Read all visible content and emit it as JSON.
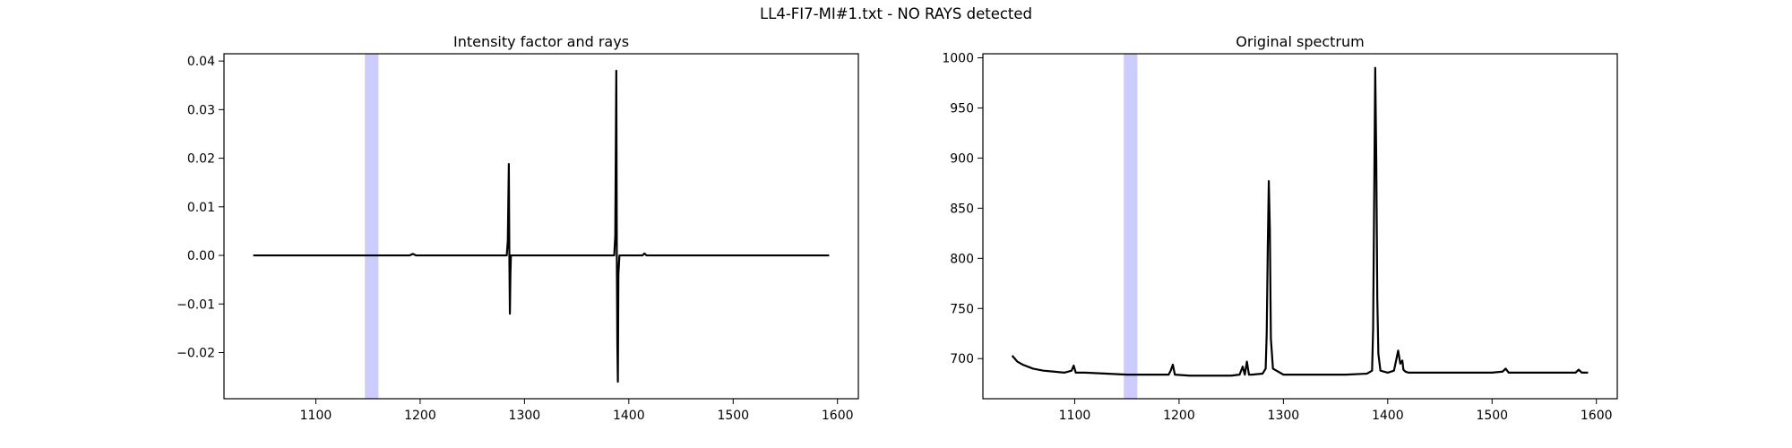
{
  "figure": {
    "title": "LL4-FI7-MI#1.txt - NO RAYS detected"
  },
  "colors": {
    "line": "#000000",
    "band": "#0000ff",
    "band_opacity": 0.2
  },
  "chart_data": [
    {
      "type": "line",
      "title": "Intensity factor and rays",
      "xlabel": "",
      "ylabel": "",
      "xlim": [
        1012,
        1620
      ],
      "ylim": [
        -0.0295,
        0.0415
      ],
      "xticks": [
        1100,
        1200,
        1300,
        1400,
        1500,
        1600
      ],
      "yticks": [
        -0.02,
        -0.01,
        0.0,
        0.01,
        0.02,
        0.03,
        0.04
      ],
      "ytick_labels": [
        "−0.02",
        "−0.01",
        "0.00",
        "0.01",
        "0.02",
        "0.03",
        "0.04"
      ],
      "grid": false,
      "highlight_band": [
        1147,
        1160
      ],
      "series": [
        {
          "x": [
            1040,
            1100,
            1150,
            1190,
            1193,
            1196,
            1240,
            1283,
            1284,
            1285,
            1285.5,
            1286,
            1286.5,
            1287,
            1288,
            1300,
            1340,
            1386,
            1387,
            1388,
            1388.5,
            1389,
            1389.5,
            1390,
            1391,
            1392,
            1400,
            1413,
            1415,
            1417,
            1450,
            1500,
            1550,
            1592
          ],
          "y": [
            0.0,
            0.0,
            0.0,
            0.0,
            0.0003,
            0.0,
            0.0,
            0.0,
            0.003,
            0.0188,
            0.0,
            -0.012,
            -0.004,
            0.0,
            0.0,
            0.0,
            0.0,
            0.0,
            0.004,
            0.038,
            0.0,
            -0.0185,
            -0.026,
            -0.004,
            0.0,
            0.0,
            0.0,
            0.0,
            0.0004,
            0.0,
            0.0,
            0.0,
            0.0,
            0.0
          ]
        }
      ]
    },
    {
      "type": "line",
      "title": "Original spectrum",
      "xlabel": "",
      "ylabel": "",
      "xlim": [
        1012,
        1620
      ],
      "ylim": [
        660,
        1004
      ],
      "xticks": [
        1100,
        1200,
        1300,
        1400,
        1500,
        1600
      ],
      "yticks": [
        700,
        750,
        800,
        850,
        900,
        950,
        1000
      ],
      "ytick_labels": [
        "700",
        "750",
        "800",
        "850",
        "900",
        "950",
        "1000"
      ],
      "grid": false,
      "highlight_band": [
        1147,
        1160
      ],
      "series": [
        {
          "x": [
            1040,
            1045,
            1050,
            1055,
            1060,
            1070,
            1080,
            1090,
            1097,
            1099,
            1101,
            1110,
            1130,
            1150,
            1170,
            1190,
            1192,
            1194,
            1196,
            1210,
            1230,
            1250,
            1258,
            1261,
            1263,
            1265,
            1267,
            1270,
            1280,
            1283,
            1284,
            1285,
            1286,
            1287,
            1288,
            1290,
            1300,
            1320,
            1340,
            1360,
            1380,
            1385,
            1386,
            1387,
            1388,
            1389,
            1390,
            1391,
            1393,
            1400,
            1406,
            1408,
            1410,
            1412,
            1414,
            1415,
            1417,
            1420,
            1440,
            1460,
            1480,
            1500,
            1510,
            1513,
            1516,
            1530,
            1550,
            1570,
            1580,
            1583,
            1586,
            1592
          ],
          "y": [
            703,
            697,
            694,
            692,
            690,
            688,
            687,
            686,
            688,
            693,
            686,
            686,
            685,
            684,
            684,
            684,
            688,
            694,
            684,
            683,
            683,
            683,
            684,
            692,
            684,
            697,
            684,
            684,
            685,
            690,
            725,
            810,
            877,
            830,
            720,
            690,
            684,
            684,
            684,
            684,
            685,
            688,
            730,
            860,
            990,
            900,
            760,
            705,
            688,
            686,
            688,
            698,
            708,
            695,
            698,
            689,
            687,
            686,
            686,
            686,
            686,
            686,
            687,
            690,
            686,
            686,
            686,
            686,
            686,
            689,
            686,
            686
          ]
        }
      ]
    }
  ]
}
